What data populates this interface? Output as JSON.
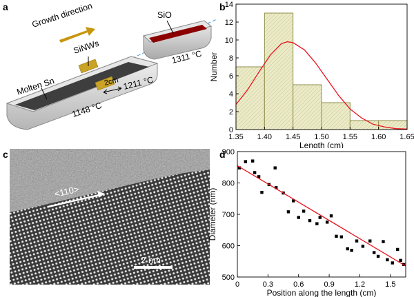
{
  "panel_letters": {
    "a": "a",
    "b": "b",
    "c": "c",
    "d": "d"
  },
  "schematic": {
    "growth_direction": "Growth direction",
    "sinws": "SiNWs",
    "sio": "SiO",
    "molten_sn": "Molten Sn",
    "gap_2cm": "2cm",
    "t_1148": "1148 °C",
    "t_1211": "1211 °C",
    "t_1311": "1311 °C",
    "colors": {
      "arrow": "#c8960c",
      "sinw_block": "#c9a226",
      "sio_fill": "#8b0000",
      "boat": "#d0d0d0",
      "melt": "#404040",
      "axis_line": "#5aa9e6"
    }
  },
  "tem": {
    "direction_label": "<110>",
    "scale_bar_label": "2 nm"
  },
  "chart_data": [
    {
      "type": "bar",
      "panel": "b",
      "xlabel": "Length (cm)",
      "ylabel": "Number",
      "xlim": [
        1.35,
        1.65
      ],
      "ylim": [
        0,
        14
      ],
      "xticks": [
        "1.35",
        "1.40",
        "1.45",
        "1.50",
        "1.55",
        "1.60",
        "1.65"
      ],
      "yticks": [
        "0",
        "2",
        "4",
        "6",
        "8",
        "10",
        "12",
        "14"
      ],
      "bins": [
        {
          "x0": 1.35,
          "x1": 1.4,
          "value": 7
        },
        {
          "x0": 1.4,
          "x1": 1.45,
          "value": 13
        },
        {
          "x0": 1.45,
          "x1": 1.5,
          "value": 5
        },
        {
          "x0": 1.5,
          "x1": 1.55,
          "value": 3
        },
        {
          "x0": 1.55,
          "x1": 1.6,
          "value": 1
        },
        {
          "x0": 1.6,
          "x1": 1.65,
          "value": 1
        }
      ],
      "fit_curve": {
        "x": [
          1.35,
          1.37,
          1.39,
          1.41,
          1.43,
          1.44,
          1.45,
          1.47,
          1.49,
          1.51,
          1.53,
          1.55,
          1.57,
          1.59,
          1.61,
          1.63,
          1.65
        ],
        "y": [
          2.8,
          4.4,
          6.4,
          8.3,
          9.6,
          9.8,
          9.7,
          8.9,
          7.4,
          5.6,
          3.8,
          2.3,
          1.3,
          0.6,
          0.3,
          0.1,
          0.05
        ]
      },
      "colors": {
        "bar_fill": "#ecebc8",
        "bar_stroke": "#8f8e4a",
        "curve": "#e8141e"
      }
    },
    {
      "type": "scatter",
      "panel": "d",
      "xlabel": "Position along the length (cm)",
      "ylabel": "Diameter (nm)",
      "xlim": [
        0,
        1.65
      ],
      "ylim": [
        500,
        900
      ],
      "xticks": [
        "0",
        "0.3",
        "0.6",
        "0.9",
        "1.2",
        "1.5"
      ],
      "yticks": [
        "500",
        "600",
        "700",
        "800",
        "900"
      ],
      "points": [
        [
          0.02,
          848
        ],
        [
          0.08,
          868
        ],
        [
          0.15,
          870
        ],
        [
          0.17,
          833
        ],
        [
          0.21,
          820
        ],
        [
          0.24,
          770
        ],
        [
          0.31,
          795
        ],
        [
          0.37,
          848
        ],
        [
          0.38,
          785
        ],
        [
          0.45,
          768
        ],
        [
          0.5,
          708
        ],
        [
          0.55,
          743
        ],
        [
          0.6,
          690
        ],
        [
          0.65,
          710
        ],
        [
          0.71,
          680
        ],
        [
          0.78,
          670
        ],
        [
          0.81,
          690
        ],
        [
          0.88,
          675
        ],
        [
          0.92,
          695
        ],
        [
          0.97,
          630
        ],
        [
          1.02,
          628
        ],
        [
          1.08,
          590
        ],
        [
          1.12,
          585
        ],
        [
          1.17,
          615
        ],
        [
          1.23,
          598
        ],
        [
          1.3,
          615
        ],
        [
          1.34,
          578
        ],
        [
          1.38,
          566
        ],
        [
          1.43,
          613
        ],
        [
          1.47,
          555
        ],
        [
          1.52,
          545
        ],
        [
          1.57,
          588
        ],
        [
          1.6,
          553
        ],
        [
          1.63,
          540
        ]
      ],
      "fit_line": {
        "x": [
          0,
          1.65
        ],
        "y": [
          855,
          535
        ]
      },
      "colors": {
        "marker": "#000000",
        "line": "#e8141e"
      }
    }
  ]
}
